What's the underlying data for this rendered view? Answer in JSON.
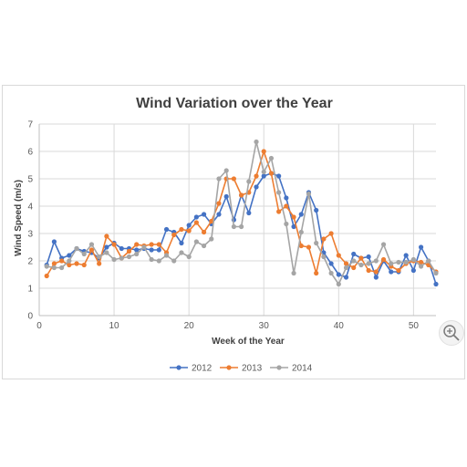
{
  "chart_data": {
    "type": "line",
    "title": "Wind Variation over the Year",
    "xlabel": "Week of the Year",
    "ylabel": "Wind Speed (m/s)",
    "xlim": [
      0,
      53
    ],
    "ylim": [
      0,
      7
    ],
    "xticks": [
      0,
      10,
      20,
      30,
      40,
      50
    ],
    "yticks": [
      0,
      1,
      2,
      3,
      4,
      5,
      6,
      7
    ],
    "grid": true,
    "legend_position": "bottom",
    "x": [
      1,
      2,
      3,
      4,
      5,
      6,
      7,
      8,
      9,
      10,
      11,
      12,
      13,
      14,
      15,
      16,
      17,
      18,
      19,
      20,
      21,
      22,
      23,
      24,
      25,
      26,
      27,
      28,
      29,
      30,
      31,
      32,
      33,
      34,
      35,
      36,
      37,
      38,
      39,
      40,
      41,
      42,
      43,
      44,
      45,
      46,
      47,
      48,
      49,
      50,
      51,
      52,
      53
    ],
    "series": [
      {
        "name": "2012",
        "color": "#4472C4",
        "values": [
          1.85,
          2.7,
          2.1,
          2.2,
          2.45,
          2.35,
          2.3,
          2.1,
          2.5,
          2.65,
          2.45,
          2.45,
          2.4,
          2.45,
          2.4,
          2.4,
          3.15,
          3.05,
          2.65,
          3.3,
          3.6,
          3.7,
          3.35,
          3.7,
          4.35,
          3.5,
          4.4,
          3.75,
          4.7,
          5.1,
          5.2,
          5.1,
          4.3,
          3.25,
          3.7,
          4.5,
          3.85,
          2.3,
          1.9,
          1.5,
          1.4,
          2.25,
          2.1,
          2.15,
          1.4,
          2.0,
          1.6,
          1.6,
          2.2,
          1.65,
          2.5,
          2.0,
          1.15
        ]
      },
      {
        "name": "2013",
        "color": "#ED7D31",
        "values": [
          1.45,
          1.9,
          2.0,
          1.85,
          1.9,
          1.85,
          2.4,
          1.9,
          2.9,
          2.6,
          2.1,
          2.35,
          2.6,
          2.55,
          2.6,
          2.6,
          2.3,
          2.95,
          3.15,
          3.1,
          3.4,
          3.05,
          3.45,
          4.1,
          5.0,
          5.0,
          4.4,
          4.5,
          5.1,
          6.0,
          5.2,
          3.8,
          4.0,
          3.6,
          2.55,
          2.5,
          1.55,
          2.8,
          3.0,
          2.2,
          1.9,
          1.75,
          2.1,
          1.65,
          1.6,
          2.05,
          1.8,
          1.65,
          1.9,
          2.0,
          1.95,
          1.85,
          1.6
        ]
      },
      {
        "name": "2014",
        "color": "#A5A5A5",
        "values": [
          1.8,
          1.75,
          1.75,
          2.0,
          2.45,
          2.25,
          2.6,
          2.15,
          2.3,
          2.05,
          2.1,
          2.15,
          2.25,
          2.5,
          2.05,
          2.0,
          2.2,
          2.0,
          2.3,
          2.15,
          2.7,
          2.55,
          2.8,
          5.0,
          5.3,
          3.25,
          3.25,
          4.9,
          6.35,
          5.25,
          5.75,
          4.5,
          3.35,
          1.55,
          3.05,
          4.45,
          2.65,
          2.15,
          1.55,
          1.15,
          1.75,
          2.0,
          1.85,
          1.9,
          2.0,
          2.6,
          1.9,
          1.95,
          1.95,
          2.05,
          1.8,
          2.0,
          1.55
        ]
      }
    ]
  },
  "icons": {
    "zoom": "magnifier-plus-icon"
  }
}
